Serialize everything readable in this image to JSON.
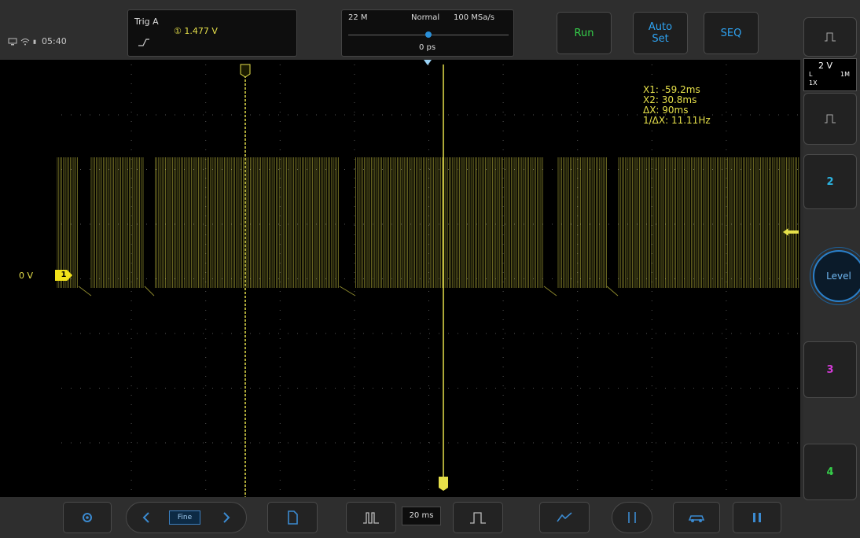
{
  "status": {
    "time": "05:40"
  },
  "trigger": {
    "source_label": "Trig  A",
    "level": "① 1.477 V"
  },
  "timebase": {
    "memory_depth": "22 M",
    "mode": "Normal",
    "sample_rate": "100 MSa/s",
    "offset": "0 ps"
  },
  "toolbar": {
    "run_label": "Run",
    "auto_set_label_1": "Auto",
    "auto_set_label_2": "Set",
    "seq_label": "SEQ"
  },
  "channel": {
    "zero_label": "0 V",
    "tag": "1"
  },
  "cursors": {
    "x1_tag": "X1",
    "x2_tag": "X2",
    "x1": "X1: -59.2ms",
    "x2": "X2: 30.8ms",
    "dx": "ΔX: 90ms",
    "inv_dx": "1/ΔX: 11.11Hz"
  },
  "right_panel": {
    "ch1_volts": "2 V",
    "ch1_coupling": "L",
    "ch1_impedance": "1M",
    "ch1_probe": "1X",
    "ch2_label": "2",
    "ch3_label": "3",
    "ch4_label": "4",
    "level_label": "Level"
  },
  "bottom": {
    "fine_label": "Fine",
    "time_per_div": "20 ms"
  },
  "colors": {
    "ch1": "#e6e04a",
    "ch2": "#2bb3e0",
    "ch3": "#d23ad6",
    "ch4": "#35d04a",
    "run": "#35d04a",
    "accent": "#2ea3f2"
  }
}
